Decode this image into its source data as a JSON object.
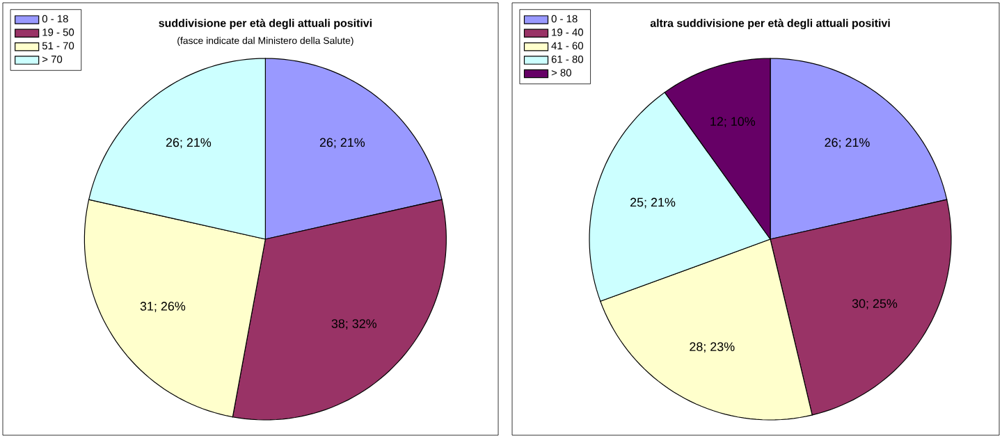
{
  "chart_data": [
    {
      "type": "pie",
      "title": "suddivisione per età degli attuali positivi",
      "subtitle": "(fasce indicate dal Ministero della Salute)",
      "categories": [
        "0 - 18",
        "19 - 50",
        "51 - 70",
        "> 70"
      ],
      "values": [
        26,
        38,
        31,
        26
      ],
      "value_labels": [
        "26; 21%",
        "38; 32%",
        "31; 26%",
        "26; 21%"
      ],
      "colors": [
        "#9999ff",
        "#993366",
        "#ffffcc",
        "#ccffff"
      ],
      "legend": "top left"
    },
    {
      "type": "pie",
      "title": "altra suddivisione per età degli attuali positivi",
      "categories": [
        "0 - 18",
        "19 - 40",
        "41 - 60",
        "61 - 80",
        "> 80"
      ],
      "values": [
        26,
        30,
        28,
        25,
        12
      ],
      "value_labels": [
        "26; 21%",
        "30; 25%",
        "28; 23%",
        "25; 21%",
        "12; 10%"
      ],
      "colors": [
        "#9999ff",
        "#993366",
        "#ffffcc",
        "#ccffff",
        "#660066"
      ],
      "legend": "top left"
    }
  ]
}
